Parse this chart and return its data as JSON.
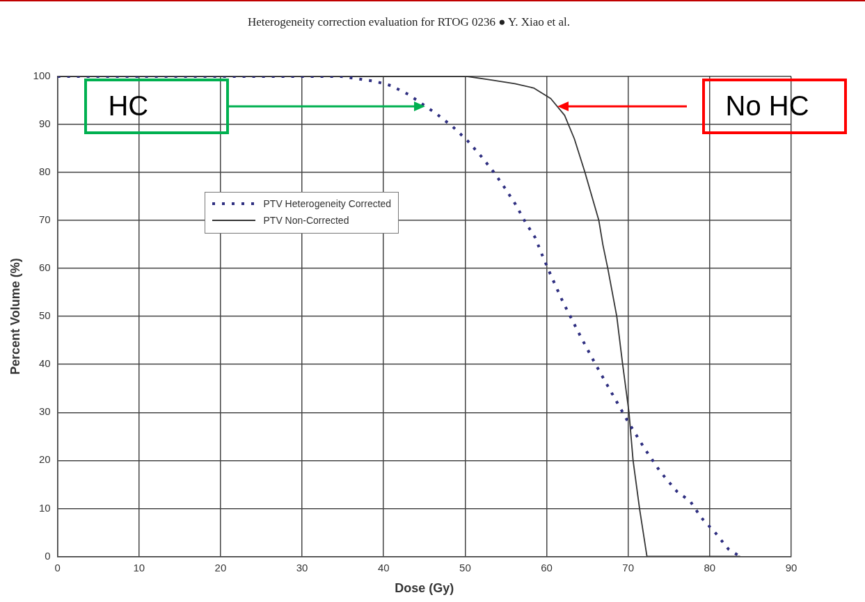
{
  "chart_data": {
    "type": "line",
    "title": "Heterogeneity correction evaluation for RTOG 0236 ● Y. Xiao et al.",
    "xlabel": "Dose (Gy)",
    "ylabel": "Percent Volume (%)",
    "xlim": [
      0,
      90
    ],
    "xticks": [
      0,
      10,
      20,
      30,
      40,
      50,
      60,
      70,
      80,
      90
    ],
    "ylim": [
      0,
      100
    ],
    "yticks": [
      0,
      10,
      20,
      30,
      40,
      50,
      60,
      70,
      80,
      90,
      100
    ],
    "grid": true,
    "legend": "top left",
    "marker": "none",
    "series": [
      {
        "name": "PTV Heterogeneity Corrected",
        "color": "#2e2e80",
        "line_style": "dotted",
        "x": [
          0,
          34.8,
          38.9,
          40.9,
          43,
          46.5,
          48.5,
          50.3,
          52,
          53.5,
          54.9,
          56.2,
          57.4,
          58.6,
          59.4,
          60.3,
          62,
          64.2,
          66,
          68,
          69.9,
          72,
          74,
          76,
          77.6,
          79,
          80.7,
          82.3,
          83.7
        ],
        "values": [
          100,
          100,
          99,
          98.1,
          96.3,
          92.2,
          89.5,
          86.6,
          83.3,
          80.1,
          76.7,
          73.3,
          69.6,
          66.4,
          63,
          59.4,
          53,
          45.7,
          40,
          34,
          28.3,
          22.5,
          17.5,
          13.5,
          11.5,
          8,
          4.9,
          1.5,
          0
        ]
      },
      {
        "name": "PTV Non-Corrected",
        "color": "#333333",
        "line_style": "solid",
        "x": [
          0,
          50.3,
          53.1,
          56.1,
          58.4,
          60.5,
          62.2,
          63.4,
          64.7,
          66.4,
          66.9,
          67.5,
          68.6,
          69.3,
          70.1,
          70.6,
          71.4,
          72.3,
          83.7
        ],
        "values": [
          100,
          100,
          99.3,
          98.5,
          97.6,
          95.4,
          91.9,
          87,
          80,
          70,
          64.9,
          60,
          50,
          40.3,
          30,
          20,
          9.9,
          0,
          0
        ]
      }
    ],
    "annotations": [
      "HC",
      "No HC"
    ]
  }
}
